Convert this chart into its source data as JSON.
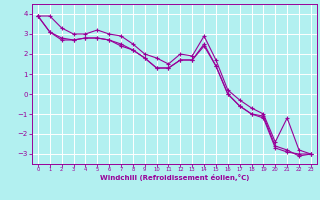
{
  "bg_color": "#b2f0f0",
  "grid_color": "#ffffff",
  "line_color": "#990099",
  "marker_color": "#990099",
  "xlabel": "Windchill (Refroidissement éolien,°C)",
  "xlabel_color": "#990099",
  "tick_color": "#990099",
  "xlim": [
    -0.5,
    23.5
  ],
  "ylim": [
    -3.5,
    4.5
  ],
  "yticks": [
    -3,
    -2,
    -1,
    0,
    1,
    2,
    3,
    4
  ],
  "xticks": [
    0,
    1,
    2,
    3,
    4,
    5,
    6,
    7,
    8,
    9,
    10,
    11,
    12,
    13,
    14,
    15,
    16,
    17,
    18,
    19,
    20,
    21,
    22,
    23
  ],
  "series": [
    [
      3.9,
      3.1,
      2.8,
      2.7,
      2.8,
      2.8,
      2.7,
      2.4,
      2.2,
      1.8,
      1.3,
      1.3,
      1.7,
      1.7,
      2.5,
      1.4,
      0.0,
      -0.6,
      -1.0,
      -1.1,
      -2.6,
      -2.8,
      -3.1,
      -3.0
    ],
    [
      3.9,
      3.9,
      3.3,
      3.0,
      3.0,
      3.2,
      3.0,
      2.9,
      2.5,
      2.0,
      1.8,
      1.5,
      2.0,
      1.9,
      2.9,
      1.7,
      0.2,
      -0.3,
      -0.7,
      -1.0,
      -2.4,
      -1.2,
      -2.8,
      -3.0
    ],
    [
      3.9,
      3.1,
      2.7,
      2.7,
      2.8,
      2.8,
      2.7,
      2.5,
      2.2,
      1.8,
      1.3,
      1.3,
      1.7,
      1.7,
      2.4,
      1.4,
      0.0,
      -0.6,
      -1.0,
      -1.2,
      -2.7,
      -2.9,
      -3.0,
      -3.0
    ]
  ]
}
